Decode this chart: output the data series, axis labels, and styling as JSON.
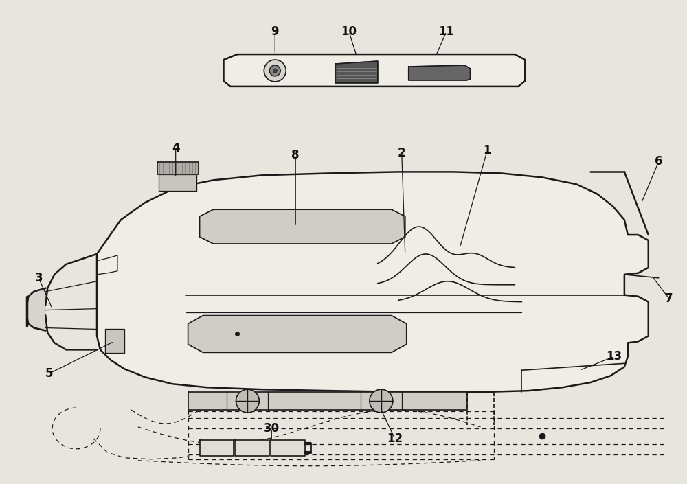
{
  "bg_color": "#e8e4de",
  "line_color": "#1a1a1a",
  "label_color": "#111111",
  "figsize": [
    10.0,
    7.05
  ],
  "dpi": 100,
  "body_fill": "#f0ece6",
  "rail_fill": "#d8d4ce",
  "panel_fill": "#f0ece6",
  "dark_fill": "#888880"
}
